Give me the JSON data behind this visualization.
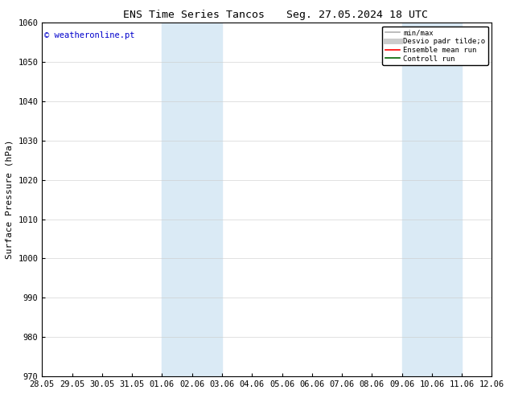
{
  "title_left": "ENS Time Series Tancos",
  "title_right": "Seg. 27.05.2024 18 UTC",
  "ylabel": "Surface Pressure (hPa)",
  "ylim": [
    970,
    1060
  ],
  "yticks": [
    970,
    980,
    990,
    1000,
    1010,
    1020,
    1030,
    1040,
    1050,
    1060
  ],
  "watermark": "© weatheronline.pt",
  "watermark_color": "#0000cc",
  "background_color": "#ffffff",
  "plot_bg_color": "#ffffff",
  "x_tick_labels": [
    "28.05",
    "29.05",
    "30.05",
    "31.05",
    "01.06",
    "02.06",
    "03.06",
    "04.06",
    "05.06",
    "06.06",
    "07.06",
    "08.06",
    "09.06",
    "10.06",
    "11.06",
    "12.06"
  ],
  "x_tick_positions": [
    0,
    1,
    2,
    3,
    4,
    5,
    6,
    7,
    8,
    9,
    10,
    11,
    12,
    13,
    14,
    15
  ],
  "shaded_regions": [
    {
      "xmin": 4,
      "xmax": 6,
      "color": "#daeaf5"
    },
    {
      "xmin": 12,
      "xmax": 14,
      "color": "#daeaf5"
    }
  ],
  "legend_entries": [
    {
      "label": "min/max",
      "color": "#b0b0b0",
      "lw": 1.2,
      "style": "solid"
    },
    {
      "label": "Desvio padr tilde;o",
      "color": "#cccccc",
      "lw": 5,
      "style": "solid"
    },
    {
      "label": "Ensemble mean run",
      "color": "#ff0000",
      "lw": 1.2,
      "style": "solid"
    },
    {
      "label": "Controll run",
      "color": "#006400",
      "lw": 1.2,
      "style": "solid"
    }
  ],
  "grid_color": "#cccccc",
  "grid_alpha": 0.7,
  "title_fontsize": 9.5,
  "tick_fontsize": 7.5,
  "ylabel_fontsize": 8,
  "watermark_fontsize": 7.5,
  "legend_fontsize": 6.5
}
